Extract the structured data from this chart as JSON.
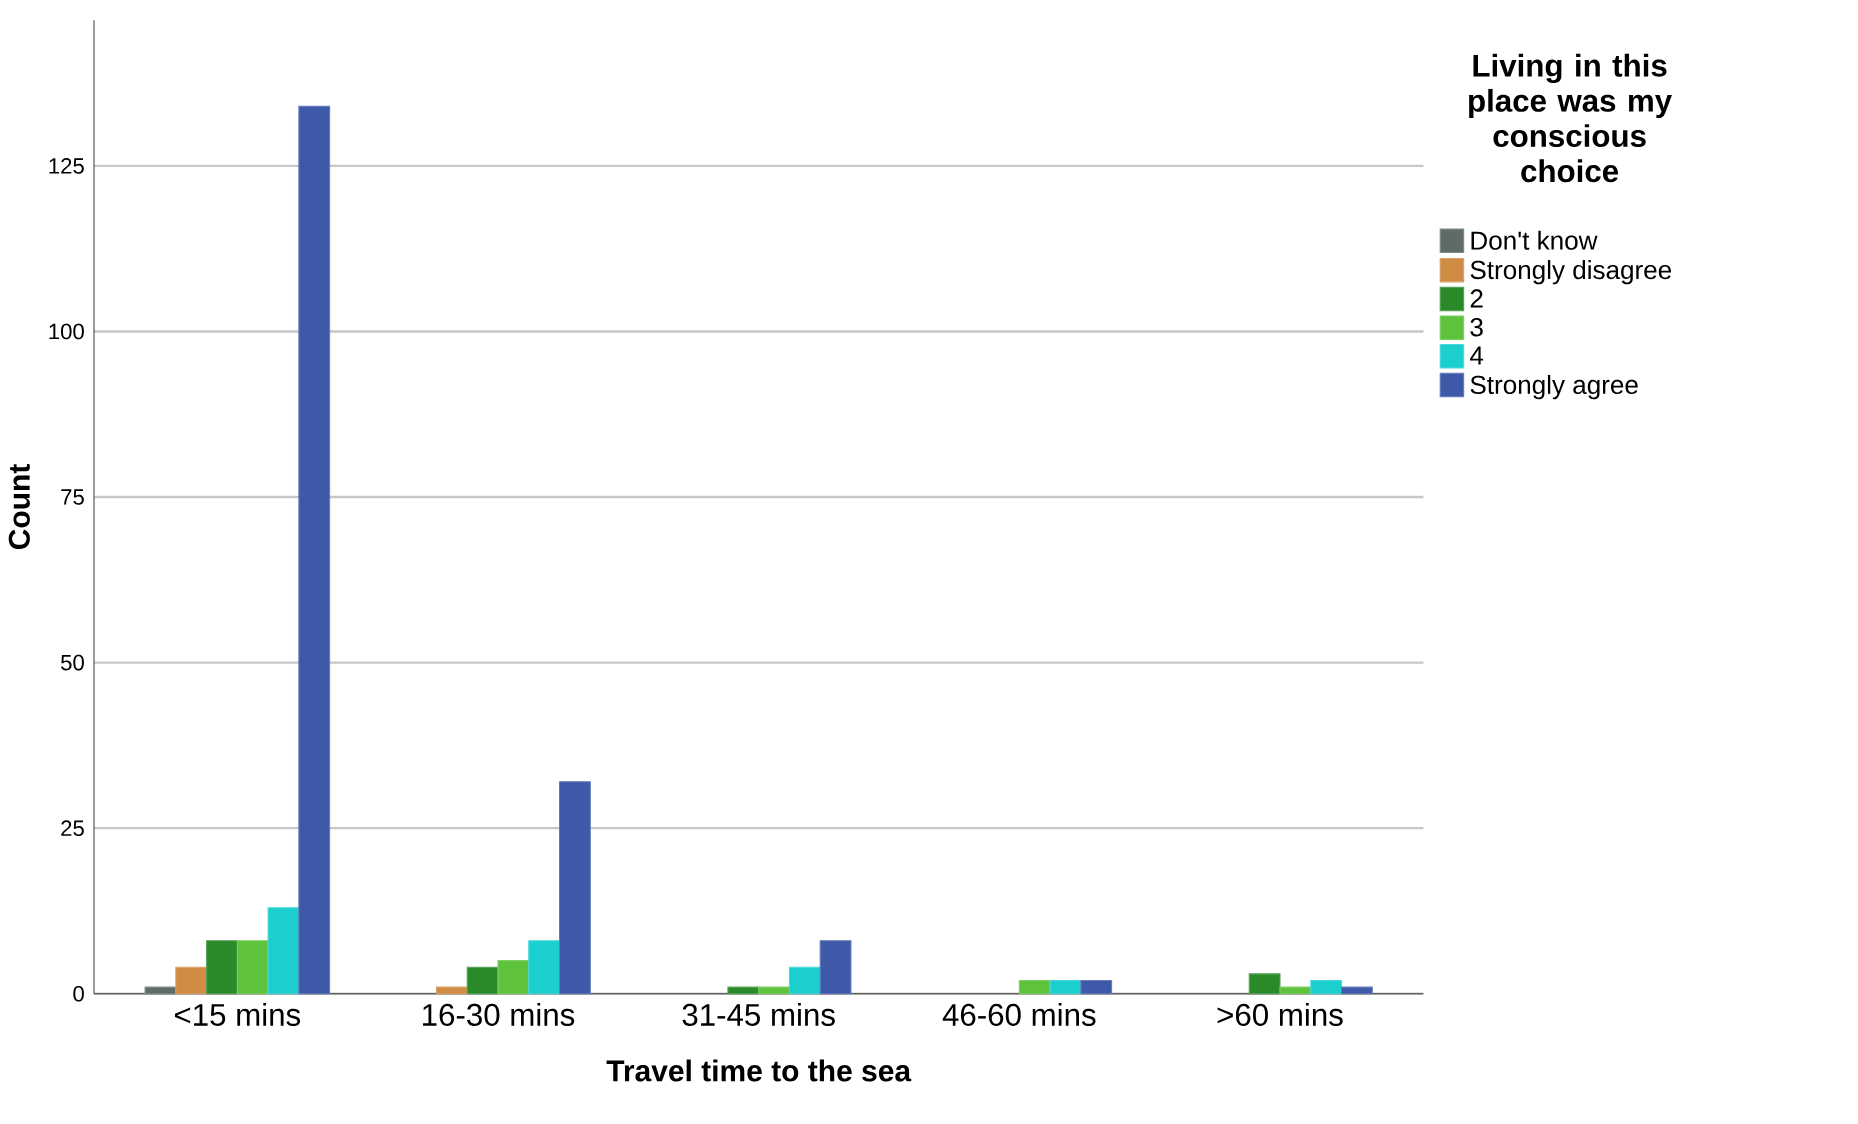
{
  "chart_data": {
    "type": "bar",
    "xlabel": "Travel time to the sea",
    "ylabel": "Count",
    "legend_title": "Living in this place was my conscious choice",
    "categories": [
      "<15 mins",
      "16-30 mins",
      "31-45 mins",
      "46-60 mins",
      ">60 mins"
    ],
    "series": [
      {
        "name": "Don't know",
        "color": "#5f6b66",
        "values": [
          1,
          null,
          null,
          null,
          null
        ]
      },
      {
        "name": "Strongly disagree",
        "color": "#d08b44",
        "values": [
          4,
          1,
          null,
          null,
          null
        ]
      },
      {
        "name": "2",
        "color": "#2a8a2a",
        "values": [
          8,
          4,
          1,
          null,
          3
        ]
      },
      {
        "name": "3",
        "color": "#5ec23c",
        "values": [
          8,
          5,
          1,
          2,
          1
        ]
      },
      {
        "name": "4",
        "color": "#1ccfcf",
        "values": [
          13,
          8,
          4,
          2,
          2
        ]
      },
      {
        "name": "Strongly agree",
        "color": "#3d59a8",
        "values": [
          134,
          32,
          8,
          2,
          1
        ]
      }
    ],
    "ylim": [
      0,
      147
    ],
    "yticks": [
      0,
      25,
      50,
      75,
      100,
      125
    ],
    "grid": "y",
    "legend": "right"
  }
}
